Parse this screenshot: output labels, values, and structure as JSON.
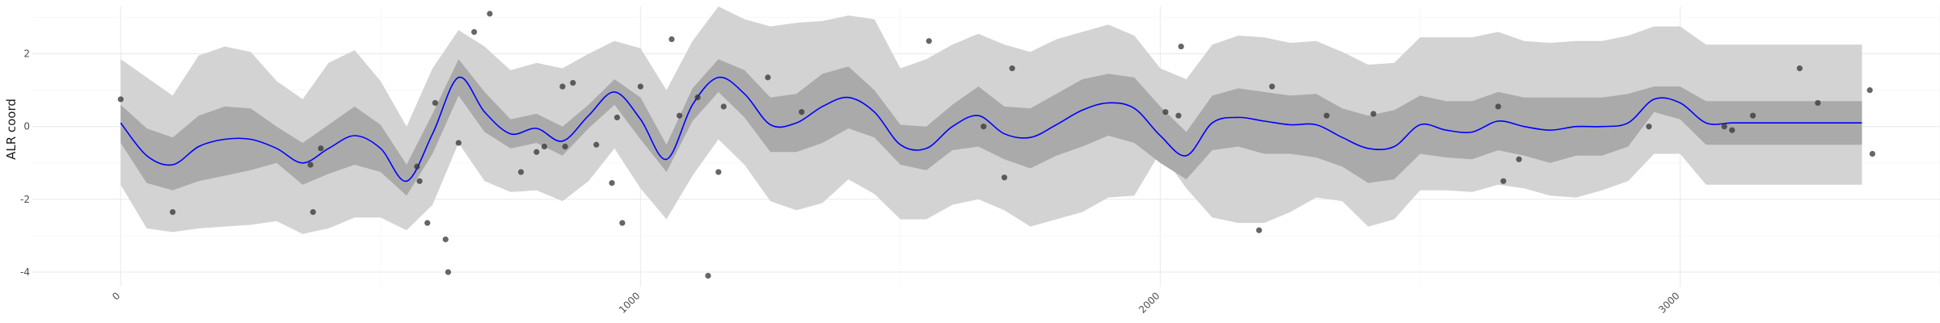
{
  "chart_data": {
    "type": "line",
    "title": "",
    "xlabel": "",
    "ylabel": "ALR coord",
    "xlim": [
      -170,
      3500
    ],
    "ylim": [
      -4.4,
      3.3
    ],
    "x_ticks": [
      0,
      1000,
      2000,
      3000
    ],
    "y_ticks": [
      -4,
      -2,
      0,
      2
    ],
    "grid": true,
    "legend": "none",
    "colors": {
      "mean_line": "#0000ff",
      "inner_band": "#aaaaaa",
      "outer_band": "#d3d3d3",
      "points": "#333333",
      "grid": "#ebebeb"
    },
    "series": [
      {
        "type": "line",
        "x": [
          0,
          50,
          100,
          150,
          200,
          250,
          300,
          350,
          400,
          450,
          500,
          550,
          600,
          650,
          700,
          750,
          800,
          850,
          900,
          950,
          1000,
          1050,
          1100,
          1150,
          1200,
          1250,
          1300,
          1350,
          1400,
          1450,
          1500,
          1550,
          1600,
          1650,
          1700,
          1750,
          1800,
          1850,
          1900,
          1950,
          2000,
          2050,
          2100,
          2150,
          2200,
          2250,
          2300,
          2350,
          2400,
          2450,
          2500,
          2550,
          2600,
          2650,
          2700,
          2750,
          2800,
          2850,
          2900,
          2950,
          3000,
          3050,
          3100,
          3150,
          3200,
          3250,
          3300,
          3350
        ],
        "y": [
          0.1,
          -0.8,
          -1.05,
          -0.55,
          -0.35,
          -0.35,
          -0.6,
          -1.0,
          -0.6,
          -0.25,
          -0.6,
          -1.5,
          -0.2,
          1.35,
          0.4,
          -0.2,
          -0.05,
          -0.4,
          0.3,
          0.95,
          0.2,
          -0.9,
          0.6,
          1.35,
          0.9,
          0.05,
          0.1,
          0.55,
          0.8,
          0.4,
          -0.5,
          -0.6,
          0.0,
          0.3,
          -0.2,
          -0.3,
          0.05,
          0.45,
          0.65,
          0.5,
          -0.25,
          -0.8,
          0.1,
          0.25,
          0.15,
          0.05,
          0.05,
          -0.3,
          -0.6,
          -0.55,
          0.05,
          -0.1,
          -0.15,
          0.15,
          0.0,
          -0.1,
          0.0,
          0.0,
          0.1,
          0.75,
          0.65,
          0.1,
          0.1,
          0.1,
          0.1,
          0.1,
          0.1,
          0.1
        ]
      },
      {
        "type": "band",
        "name": "",
        "x": [
          0,
          50,
          100,
          150,
          200,
          250,
          300,
          350,
          400,
          450,
          500,
          550,
          600,
          650,
          700,
          750,
          800,
          850,
          900,
          950,
          1000,
          1050,
          1100,
          1150,
          1200,
          1250,
          1300,
          1350,
          1400,
          1450,
          1500,
          1550,
          1600,
          1650,
          1700,
          1750,
          1800,
          1850,
          1900,
          1950,
          2000,
          2050,
          2100,
          2150,
          2200,
          2250,
          2300,
          2350,
          2400,
          2450,
          2500,
          2550,
          2600,
          2650,
          2700,
          2750,
          2800,
          2850,
          2900,
          2950,
          3000,
          3050,
          3100,
          3150,
          3200,
          3250,
          3300,
          3350
        ],
        "lower": [
          -0.45,
          -1.55,
          -1.75,
          -1.5,
          -1.35,
          -1.2,
          -1.0,
          -1.6,
          -1.3,
          -1.05,
          -1.25,
          -1.9,
          -0.75,
          0.85,
          -0.15,
          -0.6,
          -0.45,
          -0.8,
          -0.05,
          0.6,
          -0.35,
          -1.25,
          0.15,
          0.95,
          0.25,
          -0.7,
          -0.7,
          -0.45,
          -0.05,
          -0.3,
          -1.05,
          -1.2,
          -0.65,
          -0.55,
          -0.9,
          -1.15,
          -0.8,
          -0.55,
          -0.25,
          -0.45,
          -1.0,
          -1.45,
          -0.65,
          -0.55,
          -0.75,
          -0.75,
          -0.85,
          -1.1,
          -1.55,
          -1.45,
          -0.75,
          -0.85,
          -0.9,
          -0.65,
          -0.8,
          -1.0,
          -0.8,
          -0.8,
          -0.55,
          0.4,
          0.2,
          -0.5,
          -0.5,
          -0.5,
          -0.5,
          -0.5,
          -0.5,
          -0.5
        ],
        "upper": [
          0.6,
          -0.05,
          -0.3,
          0.3,
          0.55,
          0.5,
          0.0,
          -0.45,
          0.05,
          0.55,
          0.05,
          -1.05,
          0.35,
          1.85,
          0.95,
          0.2,
          0.35,
          0.0,
          0.6,
          1.3,
          0.8,
          -0.5,
          1.05,
          1.85,
          1.55,
          0.8,
          0.9,
          1.45,
          1.65,
          1.0,
          0.05,
          0.0,
          0.6,
          1.1,
          0.55,
          0.5,
          0.9,
          1.3,
          1.45,
          1.35,
          0.55,
          -0.15,
          0.85,
          1.05,
          0.95,
          0.85,
          0.9,
          0.5,
          0.3,
          0.45,
          0.85,
          0.7,
          0.7,
          0.95,
          0.8,
          0.8,
          0.8,
          0.8,
          0.9,
          1.1,
          1.1,
          0.7,
          0.7,
          0.7,
          0.7,
          0.7,
          0.7,
          0.7
        ]
      },
      {
        "type": "band",
        "name": "",
        "x": [
          0,
          50,
          100,
          150,
          200,
          250,
          300,
          350,
          400,
          450,
          500,
          550,
          600,
          650,
          700,
          750,
          800,
          850,
          900,
          950,
          1000,
          1050,
          1100,
          1150,
          1200,
          1250,
          1300,
          1350,
          1400,
          1450,
          1500,
          1550,
          1600,
          1650,
          1700,
          1750,
          1800,
          1850,
          1900,
          1950,
          2000,
          2050,
          2100,
          2150,
          2200,
          2250,
          2300,
          2350,
          2400,
          2450,
          2500,
          2550,
          2600,
          2650,
          2700,
          2750,
          2800,
          2850,
          2900,
          2950,
          3000,
          3050,
          3100,
          3150,
          3200,
          3250,
          3300,
          3350
        ],
        "lower": [
          -1.6,
          -2.8,
          -2.9,
          -2.8,
          -2.75,
          -2.7,
          -2.6,
          -2.95,
          -2.8,
          -2.5,
          -2.5,
          -2.85,
          -2.15,
          -0.45,
          -1.5,
          -1.8,
          -1.75,
          -2.05,
          -1.5,
          -0.6,
          -1.7,
          -2.55,
          -1.35,
          -0.35,
          -1.05,
          -2.05,
          -2.3,
          -2.1,
          -1.45,
          -1.85,
          -2.55,
          -2.55,
          -2.15,
          -2.0,
          -2.3,
          -2.75,
          -2.55,
          -2.35,
          -1.95,
          -1.9,
          -0.7,
          -1.7,
          -2.5,
          -2.65,
          -2.65,
          -2.35,
          -1.95,
          -2.05,
          -2.75,
          -2.55,
          -1.75,
          -1.75,
          -1.8,
          -1.6,
          -1.7,
          -1.9,
          -1.95,
          -1.75,
          -1.5,
          -0.75,
          -0.75,
          -1.6,
          -1.6,
          -1.6,
          -1.6,
          -1.6,
          -1.6,
          -1.6
        ],
        "upper": [
          1.85,
          1.35,
          0.85,
          1.95,
          2.2,
          2.05,
          1.25,
          0.75,
          1.75,
          2.1,
          1.25,
          0.0,
          1.6,
          2.65,
          2.2,
          1.55,
          1.75,
          1.6,
          2.0,
          2.35,
          2.15,
          1.0,
          2.35,
          3.3,
          2.95,
          2.75,
          2.85,
          2.9,
          3.05,
          2.95,
          1.6,
          1.85,
          2.25,
          2.55,
          2.25,
          2.05,
          2.4,
          2.6,
          2.8,
          2.5,
          1.6,
          1.3,
          2.25,
          2.5,
          2.45,
          2.3,
          2.35,
          2.05,
          1.7,
          1.75,
          2.45,
          2.45,
          2.45,
          2.6,
          2.35,
          2.3,
          2.35,
          2.35,
          2.5,
          2.75,
          2.75,
          2.25,
          2.25,
          2.25,
          2.25,
          2.25,
          2.25,
          2.25
        ]
      },
      {
        "type": "scatter",
        "name": "",
        "x": [
          0,
          100,
          365,
          370,
          385,
          570,
          575,
          590,
          605,
          625,
          630,
          650,
          680,
          710,
          770,
          800,
          815,
          850,
          855,
          870,
          915,
          945,
          955,
          965,
          1000,
          1060,
          1075,
          1110,
          1130,
          1150,
          1160,
          1245,
          1310,
          1555,
          1660,
          1700,
          1715,
          2010,
          2035,
          2040,
          2190,
          2215,
          2320,
          2410,
          2650,
          2660,
          2690,
          2940,
          3085,
          3100,
          3140,
          3230,
          3265,
          3365,
          3370
        ],
        "y": [
          0.75,
          -2.35,
          -1.05,
          -2.35,
          -0.6,
          -1.1,
          -1.5,
          -2.65,
          0.65,
          -3.1,
          -4.0,
          -0.45,
          2.6,
          3.1,
          -1.25,
          -0.7,
          -0.55,
          1.1,
          -0.55,
          1.2,
          -0.5,
          -1.55,
          0.25,
          -2.65,
          1.1,
          2.4,
          0.3,
          0.8,
          -4.1,
          -1.25,
          0.55,
          1.35,
          0.4,
          2.35,
          0.0,
          -1.4,
          1.6,
          0.4,
          0.3,
          2.2,
          -2.85,
          1.1,
          0.3,
          0.35,
          0.55,
          -1.5,
          -0.9,
          0.0,
          0.0,
          -0.1,
          0.3,
          1.6,
          0.65,
          1.0,
          -0.75
        ]
      }
    ]
  }
}
